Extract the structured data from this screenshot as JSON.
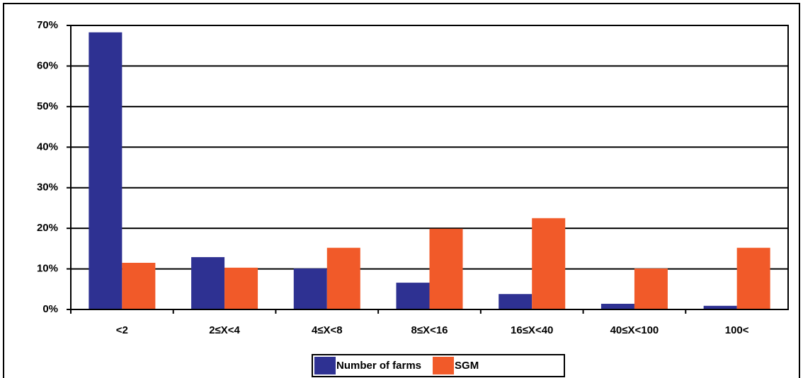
{
  "chart_data": {
    "type": "bar",
    "categories": [
      "<2",
      "2≤X<4",
      "4≤X<8",
      "8≤X<16",
      "16≤X<40",
      "40≤X<100",
      "100<"
    ],
    "series": [
      {
        "name": "Number of farms",
        "color": "#2e3192",
        "values": [
          68.3,
          12.9,
          10.1,
          6.6,
          3.8,
          1.4,
          0.9
        ]
      },
      {
        "name": "SGM",
        "color": "#f15a29",
        "values": [
          11.5,
          10.3,
          15.2,
          19.9,
          22.5,
          10.1,
          15.2
        ]
      }
    ],
    "ylim": [
      0,
      70
    ],
    "yticks": [
      {
        "value": 0,
        "label": "0%"
      },
      {
        "value": 10,
        "label": "10%"
      },
      {
        "value": 20,
        "label": "20%"
      },
      {
        "value": 30,
        "label": "30%"
      },
      {
        "value": 40,
        "label": "40%"
      },
      {
        "value": 50,
        "label": "50%"
      },
      {
        "value": 60,
        "label": "60%"
      },
      {
        "value": 70,
        "label": "70%"
      }
    ],
    "grid": true,
    "legend": "bottom"
  }
}
